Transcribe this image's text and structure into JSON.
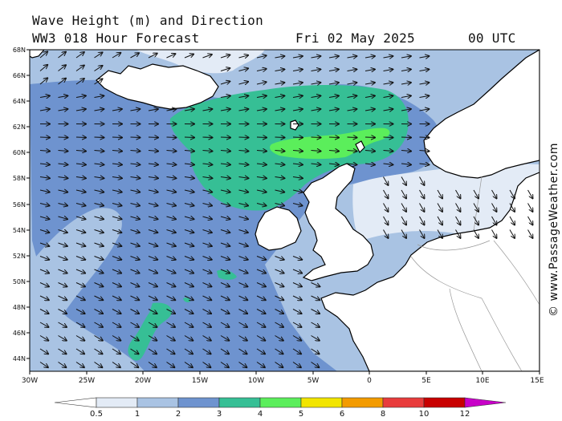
{
  "header": {
    "line1": "Wave Height (m) and Direction",
    "model": "WW3 018 Hour Forecast",
    "date": "Fri 02 May 2025",
    "time": "00 UTC"
  },
  "credit": "© www.PassageWeather.com",
  "map": {
    "lat_labels": [
      "68N",
      "66N",
      "64N",
      "62N",
      "60N",
      "58N",
      "56N",
      "54N",
      "52N",
      "50N",
      "48N",
      "46N",
      "44N"
    ],
    "lon_labels": [
      "30W",
      "25W",
      "20W",
      "15W",
      "10W",
      "5W",
      "0",
      "5E",
      "10E",
      "15E"
    ],
    "wave_direction_arrow": "east-southeast"
  },
  "colorbar": {
    "colors": [
      "#e3ebf6",
      "#a9c3e3",
      "#6e93cf",
      "#36bf95",
      "#5bee5b",
      "#f2e500",
      "#f39b00",
      "#e83c3c",
      "#c80000",
      "#c800c8"
    ],
    "labels": [
      "0.5",
      "1",
      "2",
      "3",
      "4",
      "5",
      "6",
      "8",
      "10",
      "12"
    ]
  }
}
